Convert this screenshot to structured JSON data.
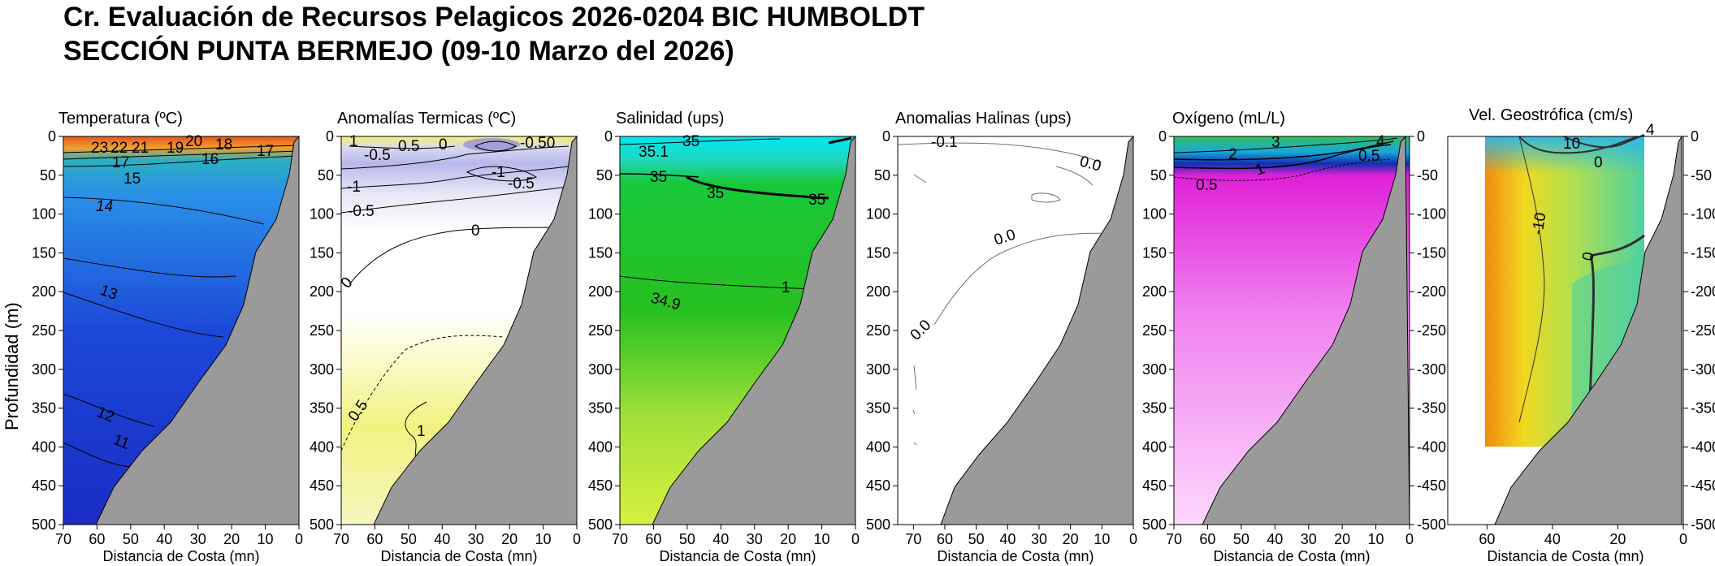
{
  "header": {
    "title_line1": "Cr. Evaluación de Recursos Pelagicos 2026-0204 BIC HUMBOLDT",
    "title_line2": "SECCIÓN PUNTA BERMEJO (09-10 Marzo del 2026)"
  },
  "y_axis_label": "Profundidad (m)",
  "x_axis_label": "Distancia de Costa (mn)",
  "chart_data": [
    {
      "type": "heatmap",
      "title": "Temperatura (ºC)",
      "xlabel": "Distancia de Costa (mn)",
      "ylabel": "Profundidad (m)",
      "xlim": [
        70,
        0
      ],
      "ylim": [
        0,
        500
      ],
      "x_ticks": [
        70,
        60,
        50,
        40,
        30,
        20,
        10,
        0
      ],
      "y_ticks": [
        0,
        50,
        100,
        150,
        200,
        250,
        300,
        350,
        400,
        450,
        500
      ],
      "contour_labels": [
        "23",
        "22",
        "21",
        "19",
        "20",
        "18",
        "17",
        "16",
        "17",
        "15",
        "14",
        "13",
        "12",
        "11"
      ],
      "colors": [
        "#e8561a",
        "#f0a030",
        "#2bb0c0",
        "#2a90e8",
        "#1c48d8",
        "#1a2cc4"
      ]
    },
    {
      "type": "heatmap",
      "title": "Anomalías Termicas (ºC)",
      "xlabel": "Distancia de Costa (mn)",
      "xlim": [
        70,
        0
      ],
      "ylim": [
        0,
        500
      ],
      "x_ticks": [
        70,
        60,
        50,
        40,
        30,
        20,
        10,
        0
      ],
      "y_ticks": [
        0,
        50,
        100,
        150,
        200,
        250,
        300,
        350,
        400,
        450,
        500
      ],
      "contour_labels": [
        "1",
        "-0.5",
        "0.5",
        "0",
        "-0.50",
        "-1",
        "-0.5",
        "-1",
        "-0.5",
        "0",
        "0",
        "0.5",
        "1"
      ],
      "colors": [
        "#f6f070",
        "#b8b8ec",
        "#ffffff",
        "#f2f280"
      ]
    },
    {
      "type": "heatmap",
      "title": "Salinidad (ups)",
      "xlabel": "Distancia de Costa (mn)",
      "xlim": [
        70,
        0
      ],
      "ylim": [
        0,
        500
      ],
      "x_ticks": [
        70,
        60,
        50,
        40,
        30,
        20,
        10,
        0
      ],
      "y_ticks": [
        0,
        50,
        100,
        150,
        200,
        250,
        300,
        350,
        400,
        450,
        500
      ],
      "contour_labels": [
        "35",
        "35.1",
        "35",
        "35",
        "35",
        "34.9",
        "1"
      ],
      "colors": [
        "#00e6f0",
        "#18c83a",
        "#28c020",
        "#a0e038",
        "#d8f040"
      ]
    },
    {
      "type": "heatmap",
      "title": "Anomalias Halinas (ups)",
      "xlabel": "Distancia de Costa (mn)",
      "xlim": [
        75,
        0
      ],
      "ylim": [
        0,
        500
      ],
      "x_ticks": [
        70,
        60,
        50,
        40,
        30,
        20,
        10,
        0
      ],
      "y_ticks": [
        0,
        50,
        100,
        150,
        200,
        250,
        300,
        350,
        400,
        450,
        500
      ],
      "contour_labels": [
        "-0.1",
        "0.0",
        "0.0",
        "0.0"
      ],
      "colors": [
        "#ffffff"
      ]
    },
    {
      "type": "heatmap",
      "title": "Oxígeno (mL/L)",
      "xlabel": "Distancia de Costa (mn)",
      "xlim": [
        70,
        0
      ],
      "ylim": [
        0,
        500
      ],
      "x_ticks": [
        70,
        60,
        50,
        40,
        30,
        20,
        10,
        0
      ],
      "y_ticks": [
        0,
        50,
        100,
        150,
        200,
        250,
        300,
        350,
        400,
        450,
        500
      ],
      "y_tick_labels": [
        "0",
        "-50",
        "-100",
        "-150",
        "-200",
        "-250",
        "-300",
        "-350",
        "-400",
        "-450",
        "-500"
      ],
      "contour_labels": [
        "3",
        "4",
        "2",
        "1",
        "0.5",
        "0.5"
      ],
      "colors": [
        "#30c060",
        "#18a8d8",
        "#1030b0",
        "#e020d8",
        "#f080f0",
        "#fcd8fc"
      ]
    },
    {
      "type": "heatmap",
      "title": "Vel. Geostrófica (cm/s)",
      "xlabel": "Distancia de Costa (mn)",
      "xlim": [
        72,
        0
      ],
      "ylim": [
        0,
        500
      ],
      "x_ticks": [
        60,
        40,
        20,
        0
      ],
      "y_ticks": [
        0,
        50,
        100,
        150,
        200,
        250,
        300,
        350,
        400,
        450,
        500
      ],
      "y_tick_labels": [
        "0",
        "-50",
        "-100",
        "-150",
        "-200",
        "-250",
        "-300",
        "-350",
        "-400",
        "-450",
        "-500"
      ],
      "data_extent": {
        "x": [
          63,
          12
        ],
        "y": [
          0,
          400
        ]
      },
      "contour_labels": [
        "4",
        "10",
        "0",
        "-10",
        "0"
      ],
      "colors": [
        "#f08c10",
        "#f0d820",
        "#b0e050",
        "#50d0a0",
        "#30b8e0"
      ]
    }
  ]
}
